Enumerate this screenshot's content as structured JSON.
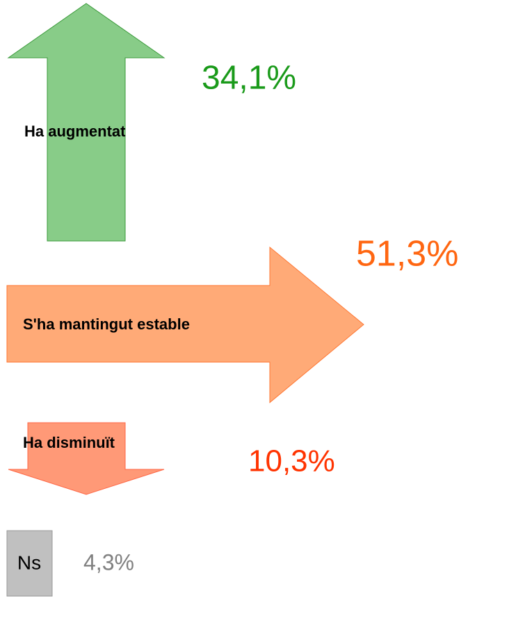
{
  "chart_data": {
    "type": "arrows",
    "categories": [
      "Ha augmentat",
      "S'ha mantingut estable",
      "Ha disminuït",
      "Ns"
    ],
    "values": [
      34.1,
      51.3,
      10.3,
      4.3
    ],
    "value_labels": [
      "34,1%",
      "51,3%",
      "10,3%",
      "4,3%"
    ],
    "directions": [
      "up",
      "right",
      "down",
      "box"
    ],
    "colors": [
      "#88cc88",
      "#ffaa77",
      "#ff9977",
      "#c0c0c0"
    ],
    "label_colors": [
      "#1a9a1a",
      "#ff6611",
      "#ff3300",
      "#808080"
    ]
  }
}
